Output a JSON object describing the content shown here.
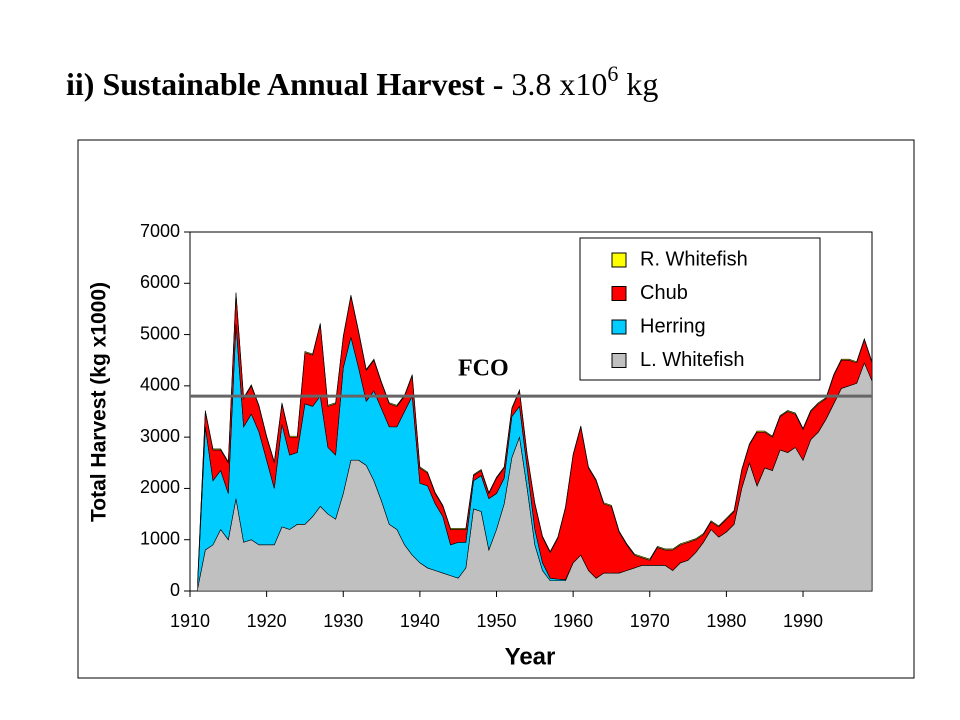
{
  "chart_data": {
    "type": "stacked_area",
    "title": {
      "main": "ii) Sustainable Annual Harvest -",
      "value": "3.8 x10",
      "exponent": "6",
      "unit": "kg"
    },
    "xlabel": "Year",
    "ylabel": "Total Harvest (kg x1000)",
    "x": [
      1911,
      1912,
      1913,
      1914,
      1915,
      1916,
      1917,
      1918,
      1919,
      1920,
      1921,
      1922,
      1923,
      1924,
      1925,
      1926,
      1927,
      1928,
      1929,
      1930,
      1931,
      1932,
      1933,
      1934,
      1935,
      1936,
      1937,
      1938,
      1939,
      1940,
      1941,
      1942,
      1943,
      1944,
      1945,
      1946,
      1947,
      1948,
      1949,
      1950,
      1951,
      1952,
      1953,
      1954,
      1955,
      1956,
      1957,
      1958,
      1959,
      1960,
      1961,
      1962,
      1963,
      1964,
      1965,
      1966,
      1967,
      1968,
      1969,
      1970,
      1971,
      1972,
      1973,
      1974,
      1975,
      1976,
      1977,
      1978,
      1979,
      1980,
      1981,
      1982,
      1983,
      1984,
      1985,
      1986,
      1987,
      1988,
      1989,
      1990,
      1991,
      1992,
      1993,
      1994,
      1995,
      1996,
      1997,
      1998,
      1999
    ],
    "series": [
      {
        "name": "L. Whitefish",
        "color": "#c0c0c0",
        "values": [
          50,
          800,
          900,
          1200,
          1000,
          1800,
          950,
          1000,
          900,
          900,
          900,
          1250,
          1200,
          1300,
          1300,
          1450,
          1650,
          1500,
          1400,
          1900,
          2550,
          2550,
          2450,
          2150,
          1750,
          1300,
          1200,
          900,
          700,
          550,
          450,
          400,
          350,
          300,
          250,
          450,
          1600,
          1550,
          800,
          1200,
          1700,
          2600,
          3000,
          2000,
          900,
          400,
          200,
          200,
          200,
          550,
          700,
          400,
          250,
          350,
          350,
          350,
          400,
          450,
          500,
          500,
          500,
          500,
          400,
          550,
          600,
          750,
          950,
          1200,
          1050,
          1150,
          1300,
          2000,
          2500,
          2050,
          2400,
          2350,
          2750,
          2700,
          2800,
          2550,
          2950,
          3100,
          3350,
          3650,
          3950,
          4000,
          4050,
          4450,
          4100
        ]
      },
      {
        "name": "Herring",
        "color": "#00ccff",
        "values": [
          100,
          2400,
          1250,
          1150,
          900,
          3400,
          2250,
          2450,
          2200,
          1650,
          1100,
          2000,
          1450,
          1400,
          2350,
          2150,
          2150,
          1300,
          1250,
          2450,
          2400,
          1800,
          1250,
          1750,
          1800,
          1900,
          2000,
          2600,
          3100,
          1550,
          1600,
          1300,
          1100,
          600,
          700,
          500,
          550,
          700,
          1000,
          700,
          500,
          800,
          600,
          400,
          300,
          150,
          50,
          30,
          20,
          0,
          0,
          0,
          0,
          0,
          0,
          0,
          0,
          0,
          0,
          0,
          0,
          0,
          0,
          0,
          0,
          0,
          0,
          0,
          0,
          0,
          0,
          0,
          0,
          0,
          0,
          0,
          0,
          0,
          0,
          0,
          0,
          0,
          0,
          0,
          0,
          0,
          0,
          0,
          0
        ]
      },
      {
        "name": "Chub",
        "color": "#ff0000",
        "values": [
          50,
          300,
          600,
          400,
          600,
          600,
          550,
          550,
          500,
          450,
          500,
          400,
          350,
          300,
          1000,
          1000,
          1400,
          800,
          1000,
          600,
          800,
          700,
          600,
          600,
          500,
          450,
          400,
          300,
          400,
          300,
          250,
          200,
          200,
          300,
          250,
          250,
          100,
          100,
          100,
          300,
          200,
          150,
          300,
          250,
          500,
          500,
          500,
          800,
          1400,
          2100,
          2500,
          2000,
          1900,
          1350,
          1300,
          800,
          500,
          250,
          150,
          100,
          350,
          300,
          400,
          350,
          350,
          250,
          150,
          150,
          200,
          250,
          250,
          350,
          350,
          1050,
          700,
          650,
          650,
          800,
          650,
          600,
          550,
          550,
          400,
          550,
          550,
          500,
          400,
          450,
          350
        ]
      },
      {
        "name": "R. Whitefish",
        "color": "#ffff00",
        "values": [
          20,
          20,
          20,
          20,
          20,
          20,
          20,
          20,
          20,
          20,
          20,
          20,
          20,
          20,
          20,
          20,
          20,
          20,
          20,
          20,
          20,
          20,
          20,
          20,
          20,
          20,
          20,
          20,
          20,
          20,
          20,
          20,
          20,
          20,
          20,
          20,
          20,
          20,
          20,
          20,
          20,
          20,
          20,
          20,
          20,
          20,
          20,
          20,
          20,
          20,
          20,
          20,
          20,
          20,
          20,
          20,
          20,
          20,
          20,
          20,
          20,
          20,
          20,
          20,
          20,
          20,
          20,
          20,
          20,
          20,
          20,
          20,
          20,
          20,
          20,
          20,
          20,
          20,
          20,
          20,
          20,
          20,
          20,
          20,
          20,
          20,
          20,
          20,
          20
        ]
      }
    ],
    "xlim": [
      1910,
      1999
    ],
    "xticks": [
      1910,
      1920,
      1930,
      1940,
      1950,
      1960,
      1970,
      1980,
      1990
    ],
    "ylim": [
      0,
      7000
    ],
    "yticks": [
      0,
      1000,
      2000,
      3000,
      4000,
      5000,
      6000,
      7000
    ],
    "reference_line": {
      "label": "FCO",
      "value": 3800,
      "color": "#666666"
    },
    "legend": "top-right"
  }
}
